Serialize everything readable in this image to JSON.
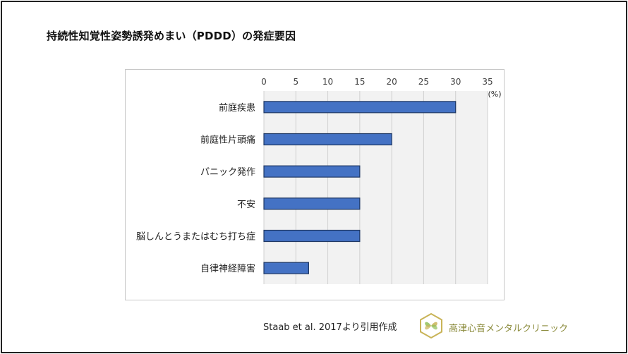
{
  "title": "持続性知覚性姿勢誘発めまい（PDDD）の発症要因",
  "source": "Staab et al. 2017より引用作成",
  "clinic_name": "高津心音メンタルクリニック",
  "colors": {
    "bar_fill": "#4472c4",
    "bar_stroke": "#1f3864",
    "plot_bg": "#f2f2f2",
    "gridline": "#d0d0d0",
    "logo_gold": "#c9b458",
    "logo_green": "#8fbf5a"
  },
  "chart_data": {
    "type": "bar",
    "orientation": "horizontal",
    "categories": [
      "前庭疾患",
      "前庭性片頭痛",
      "パニック発作",
      "不安",
      "脳しんとうまたはむち打ち症",
      "自律神経障害"
    ],
    "values": [
      30,
      20,
      15,
      15,
      15,
      7
    ],
    "unit_label": "(%)",
    "xlim": [
      0,
      35
    ],
    "xticks": [
      0,
      5,
      10,
      15,
      20,
      25,
      30,
      35
    ],
    "tick_labels": [
      "0",
      "5",
      "10",
      "15",
      "20",
      "25",
      "30",
      "35"
    ],
    "axis_position": "top",
    "grid": true
  }
}
